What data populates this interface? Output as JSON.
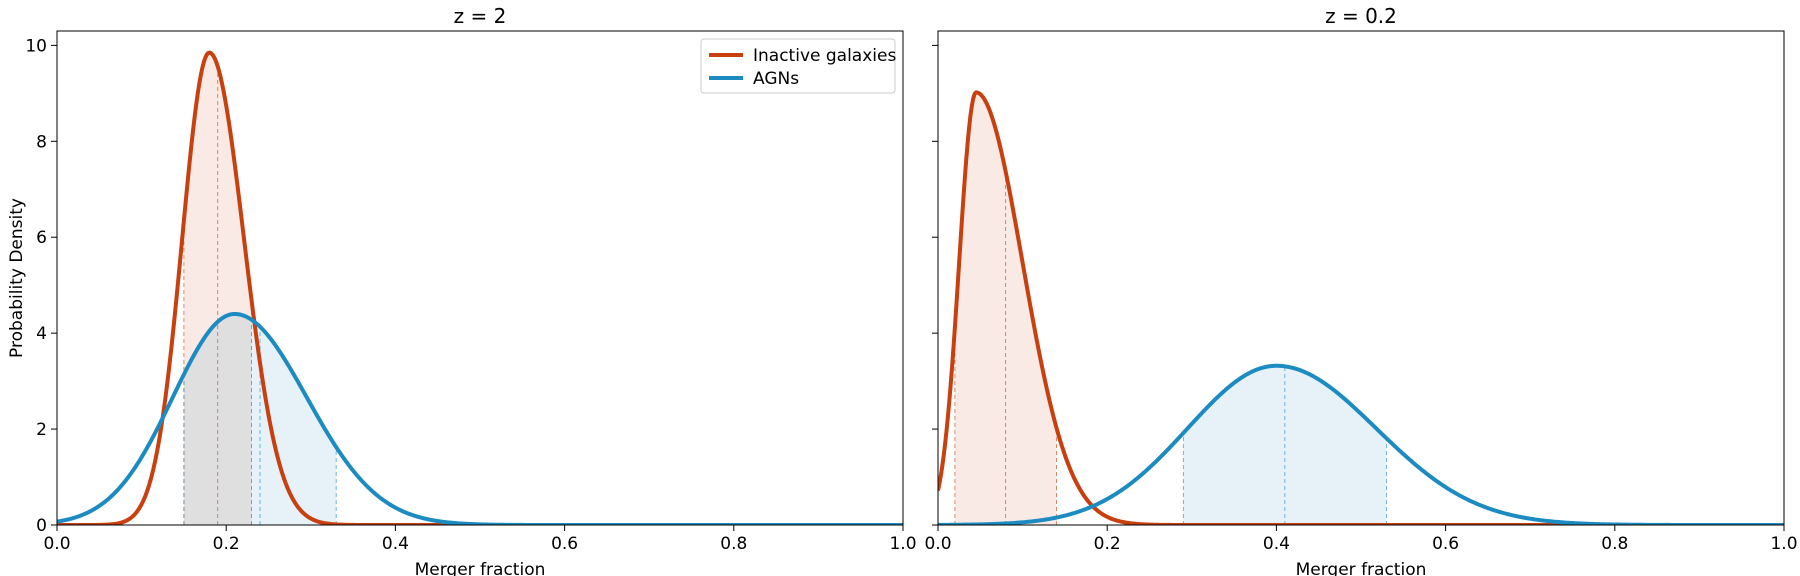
{
  "chart_data": [
    {
      "type": "line",
      "title": "z = 2",
      "xlabel": "Merger fraction",
      "ylabel": "Probability Density",
      "xlim": [
        0,
        1
      ],
      "ylim": [
        0,
        10.3
      ],
      "xticks": [
        "0.0",
        "0.2",
        "0.4",
        "0.6",
        "0.8",
        "1.0"
      ],
      "yticks": [
        "0",
        "2",
        "4",
        "6",
        "8",
        "10"
      ],
      "legend": {
        "position": "top-right"
      },
      "series": [
        {
          "name": "Inactive galaxies",
          "color": "#c8400f",
          "peak_x": 0.18,
          "peak_y": 9.85,
          "sigma_left": 0.032,
          "sigma_right": 0.041,
          "shade_range": [
            0.15,
            0.23
          ],
          "median": 0.19
        },
        {
          "name": "AGNs",
          "color": "#1b8bc2",
          "peak_x": 0.21,
          "peak_y": 4.4,
          "sigma_left": 0.073,
          "sigma_right": 0.085,
          "shade_range": [
            0.15,
            0.33
          ],
          "median": 0.24
        }
      ]
    },
    {
      "type": "line",
      "title": "z = 0.2",
      "xlabel": "Merger fraction",
      "ylabel": "",
      "xlim": [
        0,
        1
      ],
      "ylim": [
        0,
        10.3
      ],
      "xticks": [
        "0.0",
        "0.2",
        "0.4",
        "0.6",
        "0.8",
        "1.0"
      ],
      "yticks": [],
      "series": [
        {
          "name": "Inactive galaxies",
          "color": "#c8400f",
          "peak_x": 0.045,
          "peak_y": 9.02,
          "sigma_left": 0.02,
          "sigma_right": 0.055,
          "shade_range": [
            0.02,
            0.14
          ],
          "median": 0.08
        },
        {
          "name": "AGNs",
          "color": "#1b8bc2",
          "peak_x": 0.4,
          "peak_y": 3.32,
          "sigma_left": 0.105,
          "sigma_right": 0.118,
          "shade_range": [
            0.29,
            0.53
          ],
          "median": 0.41
        }
      ]
    }
  ]
}
